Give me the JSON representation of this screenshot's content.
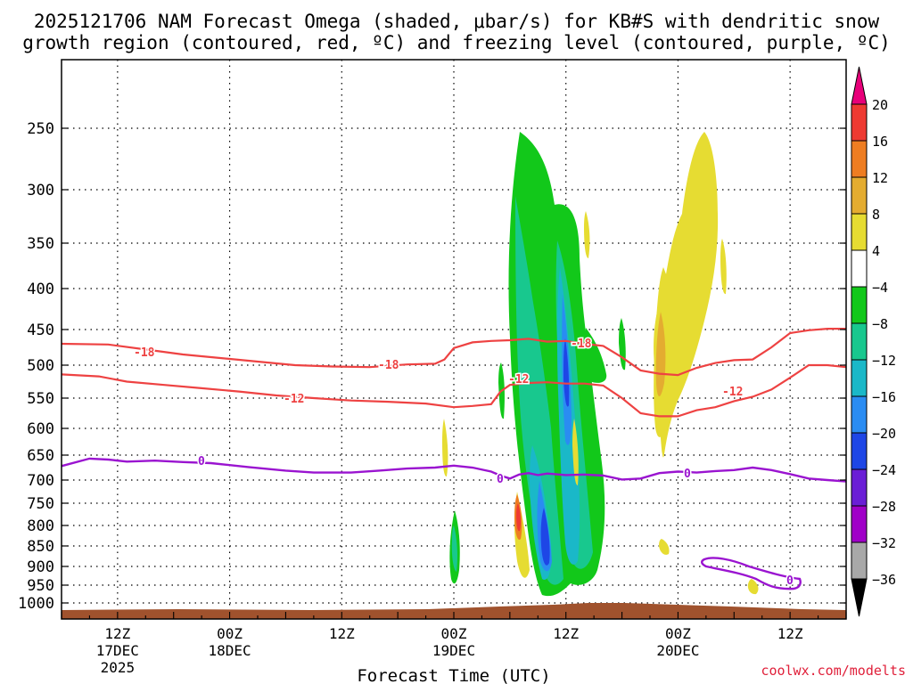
{
  "chart_data": {
    "type": "heatmap",
    "title_line1": "2025121706 NAM Forecast Omega (shaded, μbar/s) for KB#S with dendritic snow",
    "title_line2": "growth region (contoured, red, ºC) and freezing level (contoured, purple, ºC)",
    "xlabel": "Forecast Time (UTC)",
    "credit": "coolwx.com/modelts",
    "y_axis": {
      "units": "hPa",
      "range": [
        1020,
        200
      ],
      "ticks": [
        250,
        300,
        350,
        400,
        450,
        500,
        550,
        600,
        650,
        700,
        750,
        800,
        850,
        900,
        950,
        1000
      ]
    },
    "x_axis": {
      "units": "forecast hour",
      "range": [
        0,
        84
      ],
      "ticks": [
        {
          "hour": 6,
          "line1": "12Z",
          "line2": "17DEC",
          "line3": "2025"
        },
        {
          "hour": 18,
          "line1": "00Z",
          "line2": "18DEC",
          "line3": ""
        },
        {
          "hour": 30,
          "line1": "12Z",
          "line2": "",
          "line3": ""
        },
        {
          "hour": 42,
          "line1": "00Z",
          "line2": "19DEC",
          "line3": ""
        },
        {
          "hour": 54,
          "line1": "12Z",
          "line2": "",
          "line3": ""
        },
        {
          "hour": 66,
          "line1": "00Z",
          "line2": "20DEC",
          "line3": ""
        },
        {
          "hour": 78,
          "line1": "12Z",
          "line2": "",
          "line3": ""
        }
      ]
    },
    "colorbar": {
      "labels": [
        "20",
        "16",
        "12",
        "8",
        "4",
        "−4",
        "−8",
        "−12",
        "−16",
        "−20",
        "−24",
        "−28",
        "−32",
        "−36"
      ],
      "colors": {
        "above_20": "#e8007a",
        "16_to_20": "#ee3a32",
        "12_to_16": "#ee7d22",
        "8_to_12": "#e4ac30",
        "4_to_8": "#e6dc32",
        "neutral": "#ffffff",
        "m8_to_m4": "#12c81a",
        "m12_to_m8": "#18c88e",
        "m16_to_m12": "#1ab8c8",
        "m20_to_m16": "#2a8cf2",
        "m24_to_m20": "#1e46e6",
        "m28_to_m24": "#6a1ed6",
        "m32_to_m28": "#a000c8",
        "m36_to_m32": "#a8a8a8",
        "below_m36": "#000000"
      }
    },
    "contour_labels": {
      "m18": "-18",
      "m12": "-12",
      "zero": "0"
    },
    "contours": {
      "m18_upper": [
        [
          0,
          470
        ],
        [
          5,
          471
        ],
        [
          9,
          478
        ],
        [
          13,
          485
        ],
        [
          17,
          490
        ],
        [
          21,
          495
        ],
        [
          25,
          500
        ],
        [
          29,
          502
        ],
        [
          33,
          503
        ],
        [
          37,
          499
        ],
        [
          40,
          498
        ],
        [
          41,
          492
        ],
        [
          42,
          476
        ],
        [
          44,
          468
        ],
        [
          46,
          466
        ],
        [
          48,
          465
        ],
        [
          50,
          463
        ],
        [
          52,
          467
        ],
        [
          54,
          466
        ],
        [
          56,
          470
        ],
        [
          58,
          473
        ],
        [
          60,
          489
        ],
        [
          62,
          508
        ],
        [
          64,
          513
        ],
        [
          66,
          515
        ],
        [
          68,
          504
        ],
        [
          70,
          497
        ],
        [
          72,
          493
        ],
        [
          74,
          492
        ],
        [
          76,
          475
        ],
        [
          78,
          455
        ],
        [
          80,
          451
        ],
        [
          82,
          449
        ],
        [
          84,
          449
        ]
      ],
      "m12_lower": [
        [
          0,
          514
        ],
        [
          4,
          517
        ],
        [
          7,
          525
        ],
        [
          11,
          530
        ],
        [
          15,
          535
        ],
        [
          19,
          540
        ],
        [
          23,
          546
        ],
        [
          27,
          550
        ],
        [
          31,
          554
        ],
        [
          35,
          556
        ],
        [
          39,
          559
        ],
        [
          42,
          565
        ],
        [
          44,
          563
        ],
        [
          46,
          560
        ],
        [
          47,
          540
        ],
        [
          48,
          530
        ],
        [
          50,
          527
        ],
        [
          52,
          526
        ],
        [
          54,
          528
        ],
        [
          56,
          528
        ],
        [
          58,
          531
        ],
        [
          60,
          550
        ],
        [
          62,
          575
        ],
        [
          64,
          580
        ],
        [
          66,
          580
        ],
        [
          68,
          570
        ],
        [
          70,
          565
        ],
        [
          72,
          555
        ],
        [
          74,
          548
        ],
        [
          76,
          537
        ],
        [
          78,
          519
        ],
        [
          80,
          500
        ],
        [
          82,
          500
        ],
        [
          84,
          503
        ]
      ],
      "zero_line": [
        [
          0,
          672
        ],
        [
          3,
          657
        ],
        [
          5,
          659
        ],
        [
          7,
          663
        ],
        [
          10,
          661
        ],
        [
          13,
          664
        ],
        [
          16,
          666
        ],
        [
          20,
          674
        ],
        [
          24,
          681
        ],
        [
          27,
          685
        ],
        [
          31,
          685
        ],
        [
          34,
          681
        ],
        [
          37,
          677
        ],
        [
          40,
          675
        ],
        [
          42,
          671
        ],
        [
          44,
          675
        ],
        [
          46,
          683
        ],
        [
          47,
          691
        ],
        [
          48,
          697
        ],
        [
          49,
          689
        ],
        [
          50,
          686
        ],
        [
          51,
          690
        ],
        [
          52,
          687
        ],
        [
          54,
          690
        ],
        [
          56,
          689
        ],
        [
          58,
          691
        ],
        [
          60,
          699
        ],
        [
          62,
          697
        ],
        [
          64,
          686
        ],
        [
          66,
          683
        ],
        [
          68,
          685
        ],
        [
          70,
          682
        ],
        [
          72,
          680
        ],
        [
          74,
          675
        ],
        [
          76,
          680
        ],
        [
          78,
          688
        ],
        [
          80,
          697
        ],
        [
          82,
          700
        ],
        [
          84,
          703
        ]
      ]
    }
  }
}
